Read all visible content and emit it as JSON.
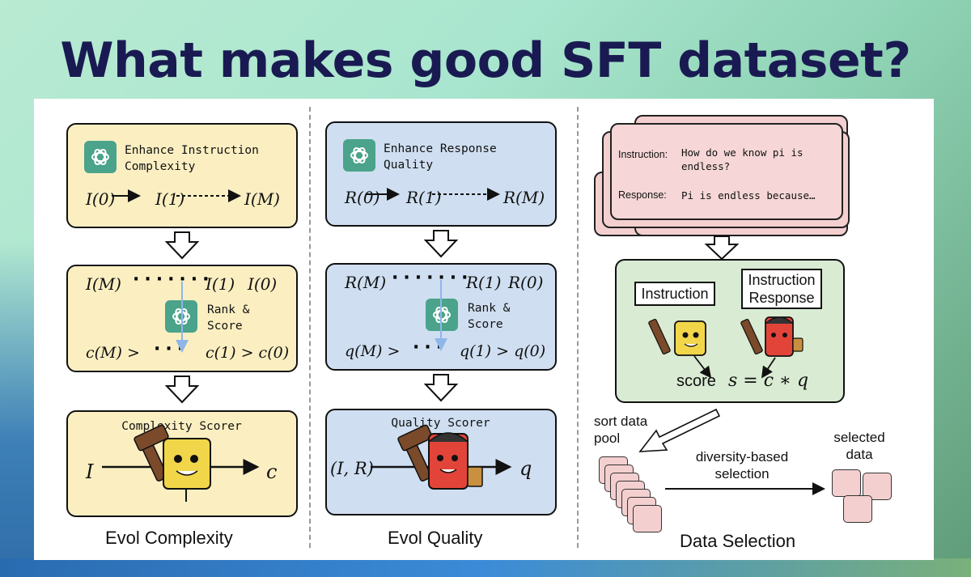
{
  "title": "What makes good SFT dataset?",
  "evol_complexity": {
    "caption": "Evol Complexity",
    "enhance_label": "Enhance Instruction Complexity",
    "evolve_seq": [
      "I(0)",
      "I(1)",
      "I(M)"
    ],
    "rank_label": "Rank & Score",
    "rank_seq": [
      "I(M)",
      "I(1)",
      "I(0)"
    ],
    "score_seq": [
      "c(M) >",
      "c(1) > c(0)"
    ],
    "scorer_label": "Complexity Scorer",
    "scorer_input": "I",
    "scorer_output": "c"
  },
  "evol_quality": {
    "caption": "Evol Quality",
    "enhance_label": "Enhance Response Quality",
    "evolve_seq": [
      "R(0)",
      "R(1)",
      "R(M)"
    ],
    "rank_label": "Rank & Score",
    "rank_seq": [
      "R(M)",
      "R(1)",
      "R(0)"
    ],
    "score_seq": [
      "q(M) >",
      "q(1) > q(0)"
    ],
    "scorer_label": "Quality Scorer",
    "scorer_input": "(I, R)",
    "scorer_output": "q"
  },
  "data_selection": {
    "caption": "Data Selection",
    "instruction_key": "Instruction:",
    "instruction_value": "How do we know pi is endless?",
    "response_key": "Response:",
    "response_value": "Pi is endless because…",
    "label_instruction": "Instruction",
    "label_instruction_response": "Instruction Response",
    "score_word": "score",
    "score_formula": "s = c ∗ q",
    "sort_label": "sort data pool",
    "diversity_label": "diversity-based selection",
    "selected_label": "selected data"
  },
  "colors": {
    "title": "#1a1a52",
    "yellow_box": "#fbefc2",
    "blue_box": "#cfdff1",
    "green_box": "#d9ebd3",
    "pink_card": "#f4cfcf",
    "gpt_icon": "#4aa38a"
  }
}
